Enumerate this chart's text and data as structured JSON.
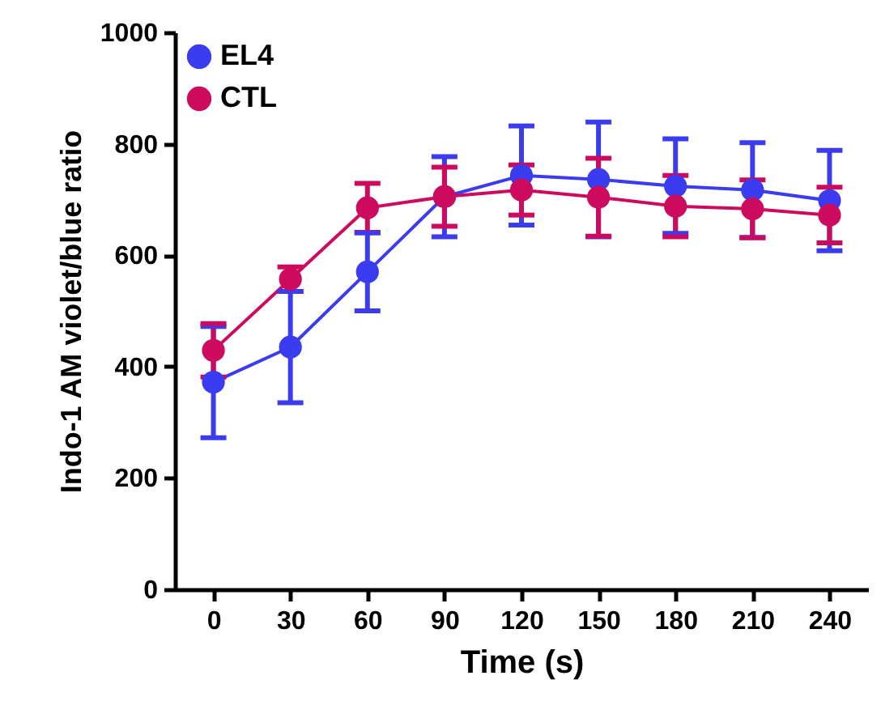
{
  "chart_data": {
    "type": "line",
    "xlabel": "Time (s)",
    "ylabel": "Indo-1 AM violet/blue ratio",
    "x": [
      0,
      30,
      60,
      90,
      120,
      150,
      180,
      210,
      240
    ],
    "series": [
      {
        "name": "EL4",
        "color": "#3b3bf0",
        "values": [
          372,
          435,
          570,
          705,
          743,
          736,
          724,
          717,
          698
        ],
        "errors": [
          100,
          100,
          70,
          72,
          89,
          103,
          85,
          85,
          90
        ]
      },
      {
        "name": "CTL",
        "color": "#cc0a5e",
        "values": [
          429,
          557,
          685,
          705,
          717,
          704,
          688,
          683,
          672
        ],
        "errors": [
          48,
          22,
          44,
          53,
          45,
          70,
          55,
          52,
          50
        ]
      }
    ],
    "xlim": [
      -15,
      255
    ],
    "xticks": [
      0,
      30,
      60,
      90,
      120,
      150,
      180,
      210,
      240
    ],
    "ylim": [
      0,
      1000
    ],
    "yticks": [
      0,
      200,
      400,
      600,
      800,
      1000
    ],
    "grid": false,
    "legend": "top left",
    "marker": "circle",
    "line_style": "solid"
  }
}
